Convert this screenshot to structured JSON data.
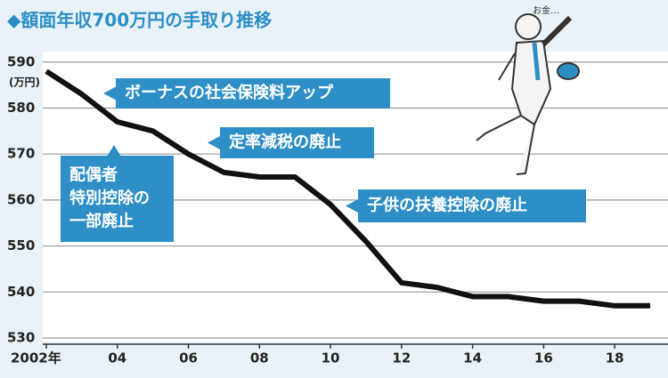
{
  "chart_data": {
    "type": "line",
    "title": "◆額面年収700万円の手取り推移",
    "y_unit": "(万円)",
    "x": [
      2002,
      2003,
      2004,
      2005,
      2006,
      2007,
      2008,
      2009,
      2010,
      2011,
      2012,
      2013,
      2014,
      2015,
      2016,
      2017,
      2018,
      2019
    ],
    "values": [
      588,
      583,
      577,
      575,
      570,
      566,
      565,
      565,
      559,
      551,
      542,
      541,
      539,
      539,
      538,
      538,
      537,
      537
    ],
    "color": "#111111",
    "xlim": [
      2002,
      2019.2
    ],
    "ylim": [
      530,
      591.5
    ],
    "yticks": [
      530,
      540,
      550,
      560,
      570,
      580,
      590
    ],
    "xticks": [
      {
        "value": 2002,
        "label": "2002年"
      },
      {
        "value": 2004,
        "label": "04"
      },
      {
        "value": 2006,
        "label": "06"
      },
      {
        "value": 2008,
        "label": "08"
      },
      {
        "value": 2010,
        "label": "10"
      },
      {
        "value": 2012,
        "label": "12"
      },
      {
        "value": 2014,
        "label": "14"
      },
      {
        "value": 2016,
        "label": "16"
      },
      {
        "value": 2018,
        "label": "18"
      }
    ],
    "grid": true,
    "annotations": [
      {
        "lines": [
          "ボーナスの社会保険料アップ"
        ]
      },
      {
        "lines": [
          "定率減税の廃止"
        ]
      },
      {
        "lines": [
          "配偶者",
          "特別控除の",
          "一部廃止"
        ]
      },
      {
        "lines": [
          "子供の扶養控除の廃止"
        ]
      }
    ],
    "illustration_text": "お金…"
  }
}
